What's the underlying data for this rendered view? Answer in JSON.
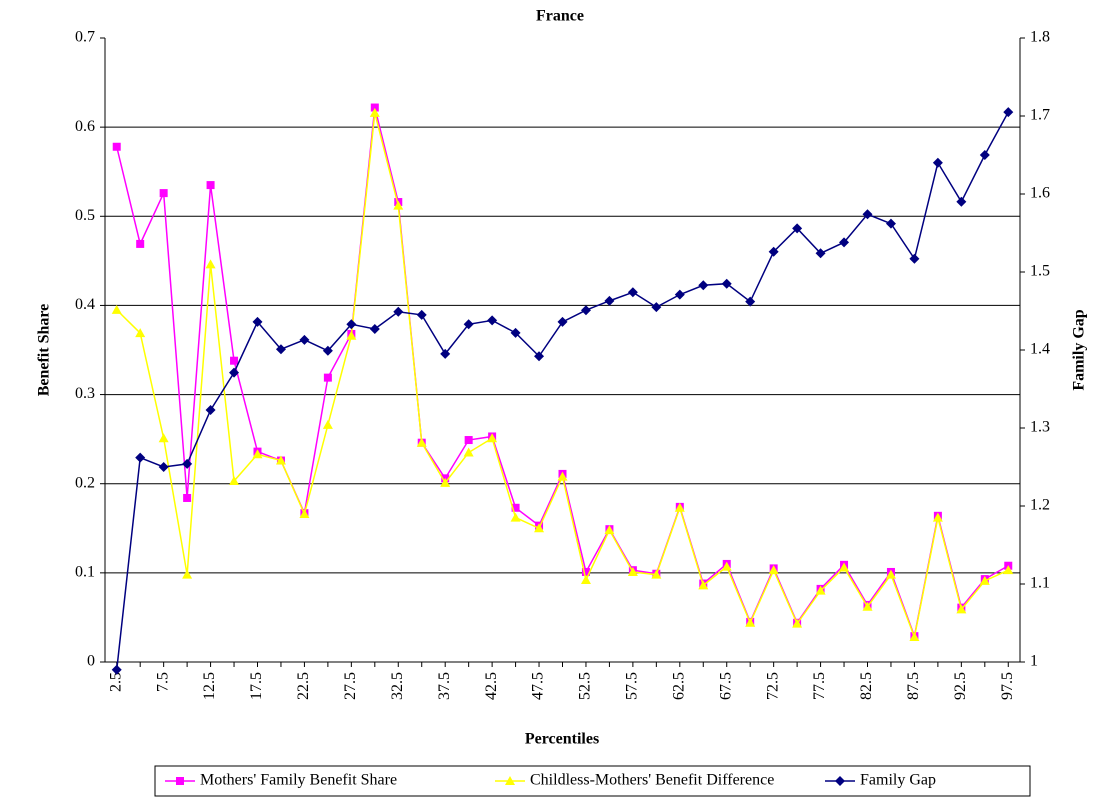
{
  "chart_data": {
    "type": "line",
    "title": "France",
    "x_label": "Percentiles",
    "y_label": "Benefit Share",
    "y2_label": "Family Gap",
    "categories": [
      "2.5",
      null,
      "7.5",
      null,
      "12.5",
      null,
      "17.5",
      null,
      "22.5",
      null,
      "27.5",
      null,
      "32.5",
      null,
      "37.5",
      null,
      "42.5",
      null,
      "47.5",
      null,
      "52.5",
      null,
      "57.5",
      null,
      "62.5",
      null,
      "67.5",
      null,
      "72.5",
      null,
      "77.5",
      null,
      "82.5",
      null,
      "87.5",
      null,
      "92.5",
      null,
      "97.5"
    ],
    "series": [
      {
        "name": "Mothers' Family Benefit Share",
        "color": "#ff00ff",
        "marker": "square",
        "values": [
          0.578,
          0.469,
          0.526,
          0.184,
          0.535,
          0.338,
          0.236,
          0.226,
          0.167,
          0.319,
          0.368,
          0.622,
          0.516,
          0.246,
          0.206,
          0.249,
          0.253,
          0.173,
          0.153,
          0.211,
          0.101,
          0.149,
          0.103,
          0.099,
          0.174,
          0.088,
          0.11,
          0.045,
          0.105,
          0.044,
          0.082,
          0.109,
          0.064,
          0.101,
          0.029,
          0.164,
          0.061,
          0.093,
          0.108
        ]
      },
      {
        "name": "Childless-Mothers' Benefit Difference",
        "color": "#ffff00",
        "marker": "triangle",
        "values": [
          0.395,
          0.369,
          0.251,
          0.098,
          0.446,
          0.203,
          0.233,
          0.226,
          0.166,
          0.266,
          0.366,
          0.616,
          0.512,
          0.246,
          0.201,
          0.235,
          0.251,
          0.162,
          0.15,
          0.208,
          0.092,
          0.148,
          0.101,
          0.098,
          0.173,
          0.086,
          0.107,
          0.044,
          0.103,
          0.043,
          0.08,
          0.106,
          0.062,
          0.098,
          0.028,
          0.162,
          0.059,
          0.091,
          0.103
        ]
      },
      {
        "name": "Family Gap",
        "color": "#000080",
        "marker": "diamond",
        "axis": "y2",
        "values": [
          0.99,
          1.262,
          1.25,
          1.254,
          1.323,
          1.371,
          1.436,
          1.401,
          1.413,
          1.399,
          1.433,
          1.427,
          1.449,
          1.445,
          1.395,
          1.433,
          1.438,
          1.422,
          1.392,
          1.436,
          1.451,
          1.463,
          1.474,
          1.455,
          1.471,
          1.483,
          1.485,
          1.462,
          1.526,
          1.556,
          1.524,
          1.538,
          1.574,
          1.562,
          1.517,
          1.64,
          1.59,
          1.65,
          1.705
        ]
      }
    ],
    "ylim": [
      0,
      0.7
    ],
    "yticks": [
      0,
      0.1,
      0.2,
      0.3,
      0.4,
      0.5,
      0.6,
      0.7
    ],
    "y2lim": [
      1,
      1.8
    ],
    "y2ticks": [
      1,
      1.1,
      1.2,
      1.3,
      1.4,
      1.5,
      1.6,
      1.7,
      1.8
    ],
    "grid": true,
    "legend": "bottom"
  }
}
